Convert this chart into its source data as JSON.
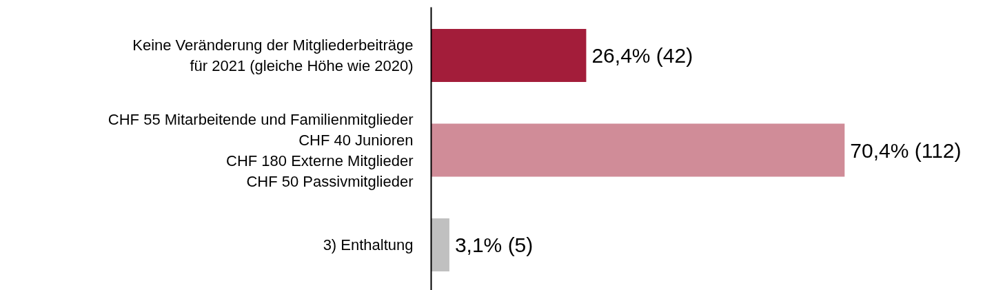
{
  "chart_data": {
    "type": "bar",
    "orientation": "horizontal",
    "categories": [
      "Keine Veränderung der Mitgliederbeiträge\nfür 2021 (gleiche Höhe wie 2020)",
      "CHF 55 Mitarbeitende und Familienmitglieder\nCHF 40 Junioren\nCHF 180 Externe Mitglieder\nCHF 50 Passivmitglieder",
      "3) Enthaltung"
    ],
    "values": [
      26.4,
      70.4,
      3.1
    ],
    "colors": [
      "#a31d3a",
      "#d08c98",
      "#c0c0c0"
    ],
    "value_labels": [
      "26,4% (42)",
      "70,4% (112)",
      "3,1% (5)"
    ],
    "grid": false
  }
}
